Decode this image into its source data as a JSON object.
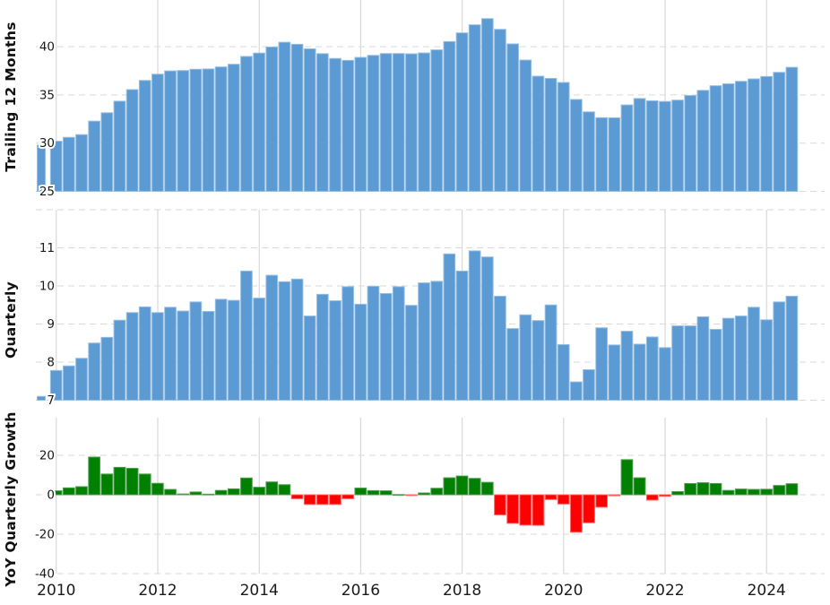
{
  "page": {
    "background": "#ffffff",
    "grid_color": "#d9d9d9",
    "text_color": "#1a1a1a"
  },
  "x_axis": {
    "tick_labels": [
      "2010",
      "2012",
      "2014",
      "2016",
      "2018",
      "2020",
      "2022",
      "2024"
    ],
    "bars_per_year": 4,
    "first_bar_clipped": true
  },
  "chart_data": [
    {
      "type": "bar",
      "panel": "trailing-12-months",
      "ylabel": "Trailing 12 Months",
      "yticks": [
        40,
        35,
        30,
        25
      ],
      "unlabeled_yticks": [],
      "ybase": 25,
      "ylim": [
        25,
        44
      ],
      "grid": true,
      "bar_color": "#5b9ad3",
      "bar_edge_color": "#97bfe3",
      "values": [
        29.8,
        30.2,
        30.6,
        30.88,
        32.28,
        33.15,
        34.35,
        35.55,
        36.5,
        37.15,
        37.49,
        37.53,
        37.66,
        37.69,
        37.9,
        38.18,
        38.99,
        39.34,
        39.97,
        40.46,
        40.25,
        39.78,
        39.28,
        38.78,
        38.58,
        38.89,
        39.1,
        39.29,
        39.29,
        39.26,
        39.35,
        39.67,
        40.53,
        41.43,
        42.27,
        42.91,
        41.8,
        40.29,
        38.61,
        36.94,
        36.71,
        36.29,
        34.53,
        33.24,
        32.64,
        32.63,
        33.96,
        34.63,
        34.39,
        34.32,
        34.46,
        34.94,
        35.47,
        35.95,
        36.15,
        36.41,
        36.66,
        36.91,
        37.34,
        37.86
      ]
    },
    {
      "type": "bar",
      "panel": "quarterly",
      "ylabel": "Quarterly",
      "yticks": [
        11,
        10,
        9,
        8,
        7
      ],
      "unlabeled_yticks": [
        12
      ],
      "ybase": 7,
      "ylim": [
        7,
        12
      ],
      "grid": true,
      "bar_color": "#5b9ad3",
      "bar_edge_color": "#97bfe3",
      "values": [
        7.1,
        7.78,
        7.9,
        8.1,
        8.5,
        8.65,
        9.1,
        9.3,
        9.45,
        9.3,
        9.44,
        9.34,
        9.58,
        9.33,
        9.65,
        9.62,
        10.39,
        9.68,
        10.28,
        10.11,
        10.18,
        9.21,
        9.78,
        9.61,
        9.98,
        9.52,
        9.99,
        9.8,
        9.98,
        9.49,
        10.08,
        10.12,
        10.84,
        10.39,
        10.92,
        10.76,
        9.73,
        8.88,
        9.24,
        9.09,
        9.5,
        8.46,
        7.48,
        7.8,
        8.9,
        8.45,
        8.81,
        8.47,
        8.66,
        8.38,
        8.95,
        8.95,
        9.19,
        8.86,
        9.15,
        9.21,
        9.44,
        9.11,
        9.58,
        9.73
      ]
    },
    {
      "type": "bar",
      "panel": "yoy-quarterly-growth",
      "ylabel": "YoY Quarterly Growth",
      "yticks": [
        20,
        0,
        -20,
        -40
      ],
      "unlabeled_yticks": [],
      "ybase": 0,
      "ylim": [
        -40,
        25
      ],
      "grid": true,
      "positive_color": "#008000",
      "positive_edge_color": "#4d9e4d",
      "negative_color": "#ff0000",
      "negative_edge_color": "#ff6666",
      "values": [
        null,
        2.0,
        3.5,
        4.1,
        19.1,
        10.5,
        13.9,
        13.4,
        10.5,
        5.8,
        2.7,
        0.4,
        1.4,
        0.3,
        2.2,
        3.0,
        8.5,
        3.8,
        6.5,
        5.1,
        -2.0,
        -4.9,
        -4.9,
        -4.9,
        -2.0,
        3.4,
        2.1,
        2.0,
        0.1,
        -0.3,
        0.9,
        3.3,
        8.6,
        9.5,
        8.3,
        6.3,
        -10.2,
        -14.5,
        -15.4,
        -15.5,
        -2.4,
        -4.7,
        -19.0,
        -14.2,
        -6.3,
        -0.5,
        17.8,
        8.6,
        -2.7,
        -0.8,
        1.6,
        5.7,
        6.1,
        5.7,
        2.2,
        2.9,
        2.7,
        2.8,
        4.7,
        5.6
      ]
    }
  ]
}
